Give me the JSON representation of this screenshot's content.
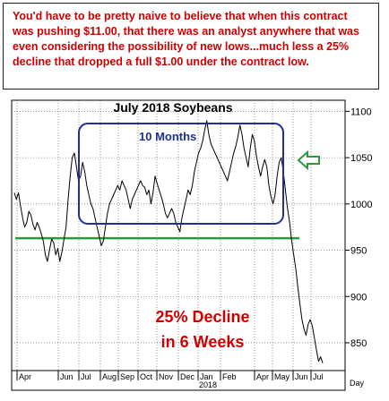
{
  "caption": "You'd have to be pretty naive to believe that when this contract was pushing $11.00, that there was an analyst anywhere that was even considering the possibility of new lows...much less a 25% decline  that dropped a full $1.00 under the contract low.",
  "chart_data": {
    "type": "line",
    "title": "July 2018 Soybeans",
    "y_ticks": [
      850,
      900,
      950,
      1000,
      1050,
      1100
    ],
    "ylim": [
      820,
      1112
    ],
    "x_labels": [
      "Apr",
      "Jun",
      "Jul",
      "Aug",
      "Sep",
      "Oct",
      "Nov",
      "Dec",
      "Jan",
      "Feb",
      "Apr",
      "May",
      "Jun",
      "Jul"
    ],
    "x_year_label": "2018",
    "x_axis_unit": "Day",
    "support_level": 963,
    "annotations": {
      "range_box_label": "10 Months",
      "decline_line1": "25% Decline",
      "decline_line2": "in 6 Weeks"
    },
    "series": [
      {
        "values": [
          1012,
          1005,
          1012,
          998,
          985,
          975,
          980,
          992,
          988,
          978,
          972,
          980,
          975,
          968,
          960,
          945,
          938,
          950,
          962,
          958,
          945,
          952,
          938,
          948,
          962,
          975,
          1005,
          1030,
          1050,
          1055,
          1040,
          1025,
          1030,
          1045,
          1035,
          1020,
          1010,
          1000,
          995,
          985,
          975,
          965,
          955,
          960,
          975,
          990,
          1000,
          1005,
          1010,
          1015,
          1020,
          1015,
          1025,
          1020,
          1015,
          1005,
          995,
          1005,
          1010,
          1015,
          1020,
          1025,
          1020,
          1018,
          1010,
          1015,
          1000,
          1012,
          1030,
          1022,
          1015,
          1008,
          1000,
          990,
          985,
          990,
          995,
          990,
          980,
          975,
          970,
          985,
          995,
          1005,
          1015,
          1010,
          1020,
          1035,
          1045,
          1055,
          1060,
          1068,
          1080,
          1090,
          1075,
          1065,
          1060,
          1055,
          1050,
          1045,
          1040,
          1035,
          1030,
          1025,
          1035,
          1045,
          1055,
          1062,
          1072,
          1085,
          1075,
          1060,
          1050,
          1040,
          1060,
          1075,
          1068,
          1052,
          1040,
          1030,
          1040,
          1048,
          1040,
          1020,
          1008,
          1000,
          1010,
          1030,
          1045,
          1050,
          1035,
          1015,
          995,
          980,
          960,
          945,
          930,
          910,
          892,
          875,
          865,
          858,
          870,
          875,
          868,
          855,
          842,
          830,
          835,
          828
        ]
      }
    ]
  }
}
